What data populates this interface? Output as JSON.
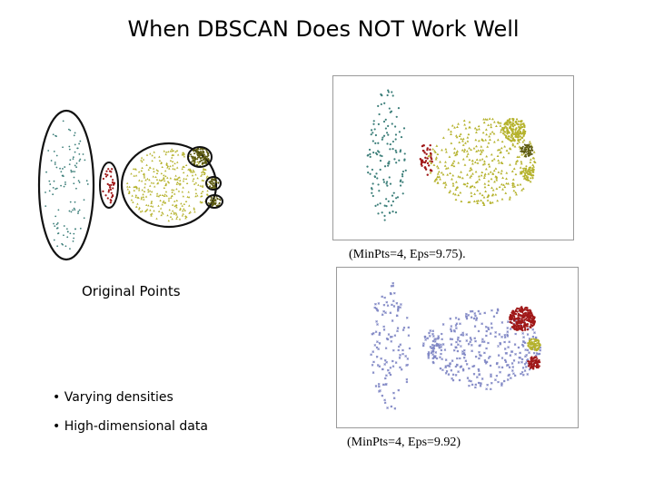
{
  "title": "When DBSCAN Does NOT Work Well",
  "original_label": "Original Points",
  "bullets": [
    "• Varying densities",
    "• High-dimensional data"
  ],
  "captions": {
    "top": "(MinPts=4, Eps=9.75).",
    "bottom": "(MinPts=4, Eps=9.92)"
  },
  "colors": {
    "teal": "#3d7f7a",
    "red": "#a01818",
    "olive": "#b5b22c",
    "olive_dark": "#5c5a10",
    "blue_noise": "#7f86c4",
    "frame": "#9a9a9a"
  }
}
